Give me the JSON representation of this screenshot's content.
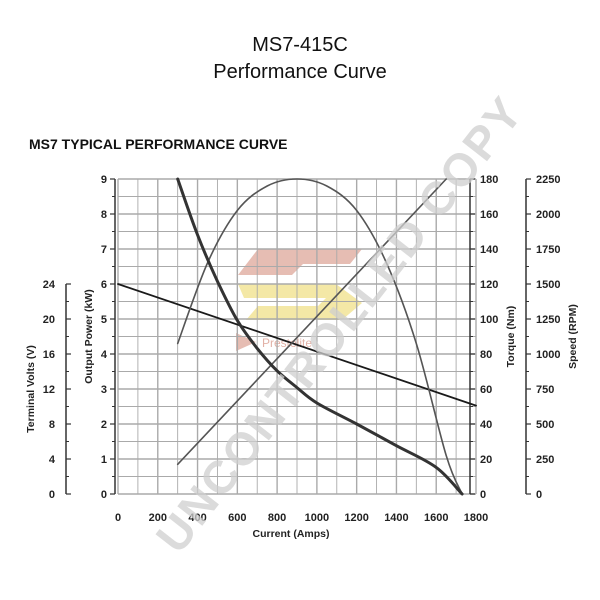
{
  "header": {
    "model": "MS7-415C",
    "subtitle": "Performance Curve"
  },
  "watermark": {
    "text": "UNCONTROLLED COPY",
    "logo_text": "Prestolite"
  },
  "colors": {
    "grid": "#aaaaaa",
    "axis": "#333333",
    "line_dark": "#1a1a1a",
    "line_mid": "#555555",
    "watermark": "#cfcfcf",
    "logo_red": "#e2b1a6",
    "logo_yellow": "#f3e69c"
  },
  "chart_data": {
    "type": "line",
    "title": "MS7 TYPICAL PERFORMANCE CURVE",
    "xlabel": "Current (Amps)",
    "x_ticks": [
      "0",
      "200",
      "400",
      "600",
      "800",
      "1000",
      "1200",
      "1400",
      "1600",
      "1800"
    ],
    "xlim": [
      0,
      1800
    ],
    "grid": true,
    "axes": {
      "terminal_volts": {
        "label": "Terminal Volts (V)",
        "range": [
          0,
          24
        ],
        "ticks": [
          "0",
          "4",
          "8",
          "12",
          "16",
          "20",
          "24"
        ]
      },
      "output_power": {
        "label": "Output Power (kW)",
        "range": [
          0,
          9
        ],
        "ticks": [
          "0",
          "1",
          "2",
          "3",
          "4",
          "5",
          "6",
          "7",
          "8",
          "9"
        ]
      },
      "torque": {
        "label": "Torque (Nm)",
        "range": [
          0,
          180
        ],
        "ticks": [
          "0",
          "20",
          "40",
          "60",
          "80",
          "100",
          "120",
          "140",
          "160",
          "180"
        ]
      },
      "speed": {
        "label": "Speed (RPM)",
        "range": [
          0,
          2250
        ],
        "ticks": [
          "0",
          "250",
          "500",
          "750",
          "1000",
          "1250",
          "1500",
          "1750",
          "2000",
          "2250"
        ]
      }
    },
    "series": [
      {
        "axis": "terminal_volts",
        "x": [
          0,
          1800
        ],
        "y": [
          24,
          10.1
        ]
      },
      {
        "axis": "output_power",
        "x": [
          300,
          450,
          600,
          750,
          900,
          1050,
          1200,
          1350,
          1500,
          1650,
          1730
        ],
        "y": [
          4.3,
          6.6,
          8.1,
          8.8,
          9.0,
          8.8,
          8.1,
          6.6,
          4.3,
          1.1,
          0
        ]
      },
      {
        "axis": "torque",
        "x": [
          300,
          1650
        ],
        "y": [
          17,
          180
        ]
      },
      {
        "axis": "speed",
        "x": [
          300,
          400,
          500,
          600,
          700,
          800,
          900,
          1000,
          1200,
          1400,
          1600,
          1730
        ],
        "y": [
          2250,
          1850,
          1520,
          1240,
          1040,
          880,
          760,
          650,
          500,
          345,
          190,
          0
        ]
      }
    ]
  }
}
